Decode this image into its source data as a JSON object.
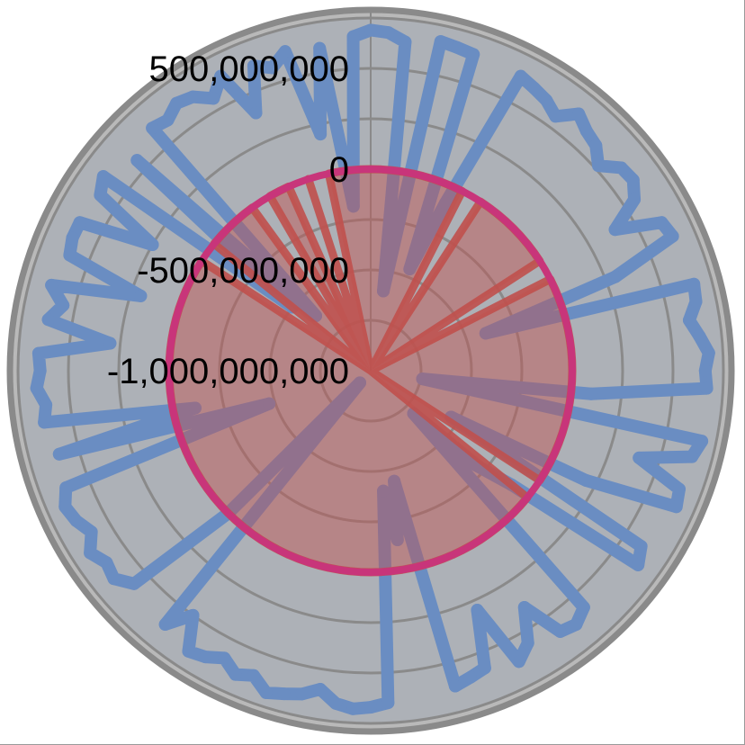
{
  "chart_data": {
    "type": "radar",
    "radial_axis": {
      "min": -1000000000,
      "max": 750000000,
      "major_unit": 250000000,
      "tick_labels": [
        "500,000,000",
        "0",
        "-500,000,000",
        "-1,000,000,000"
      ],
      "tick_values": [
        500000000,
        0,
        -500000000,
        -1000000000
      ]
    },
    "grid": true,
    "category_count": 120,
    "series": [
      {
        "style": "line",
        "color": "#6a8dc2",
        "unit": "millions",
        "values": [
          690,
          680,
          640,
          -600,
          670,
          660,
          650,
          -460,
          -90,
          640,
          620,
          600,
          560,
          640,
          600,
          580,
          520,
          600,
          610,
          560,
          400,
          620,
          640,
          300,
          -400,
          660,
          650,
          600,
          640,
          680,
          660,
          670,
          100,
          -740,
          680,
          650,
          400,
          640,
          660,
          200,
          -540,
          600,
          640,
          -100,
          -300,
          -700,
          580,
          620,
          600,
          400,
          560,
          620,
          300,
          580,
          600,
          620,
          -440,
          -150,
          -400,
          650,
          670,
          680,
          660,
          600,
          640,
          660,
          680,
          620,
          650,
          600,
          640,
          660,
          500,
          620,
          -920,
          0,
          580,
          640,
          620,
          660,
          600,
          640,
          660,
          620,
          -470,
          600,
          -110,
          640,
          620,
          660,
          640,
          650,
          300,
          620,
          560,
          640,
          200,
          600,
          620,
          620,
          250,
          600,
          640,
          -500,
          560,
          -615,
          620,
          600,
          640,
          620,
          560,
          640,
          400,
          620,
          580,
          640,
          200,
          620,
          -180,
          660
        ]
      },
      {
        "style": "filled",
        "color": "#c0504d",
        "unit": "millions",
        "values": [
          0,
          0,
          0,
          0,
          0,
          0,
          0,
          0,
          0,
          0,
          -1000,
          0,
          0,
          0,
          0,
          0,
          0,
          0,
          0,
          0,
          -1000,
          0,
          0,
          0,
          0,
          0,
          0,
          0,
          0,
          0,
          0,
          0,
          0,
          0,
          0,
          0,
          0,
          0,
          0,
          0,
          0,
          0,
          -1000,
          0,
          0,
          0,
          0,
          0,
          0,
          0,
          0,
          0,
          0,
          0,
          0,
          0,
          0,
          0,
          0,
          0,
          0,
          0,
          0,
          0,
          0,
          0,
          0,
          0,
          0,
          0,
          0,
          0,
          0,
          0,
          0,
          0,
          0,
          0,
          0,
          0,
          0,
          0,
          0,
          0,
          0,
          0,
          0,
          0,
          0,
          0,
          0,
          0,
          0,
          0,
          0,
          0,
          0,
          0,
          0,
          0,
          0,
          0,
          -1000,
          0,
          0,
          0,
          0,
          0,
          0,
          -1000,
          0,
          0,
          0,
          -1000,
          0,
          -1000,
          0,
          0,
          0,
          0
        ]
      },
      {
        "style": "line",
        "color": "#c8357a",
        "unit": "millions",
        "values": [
          0
        ]
      }
    ]
  }
}
